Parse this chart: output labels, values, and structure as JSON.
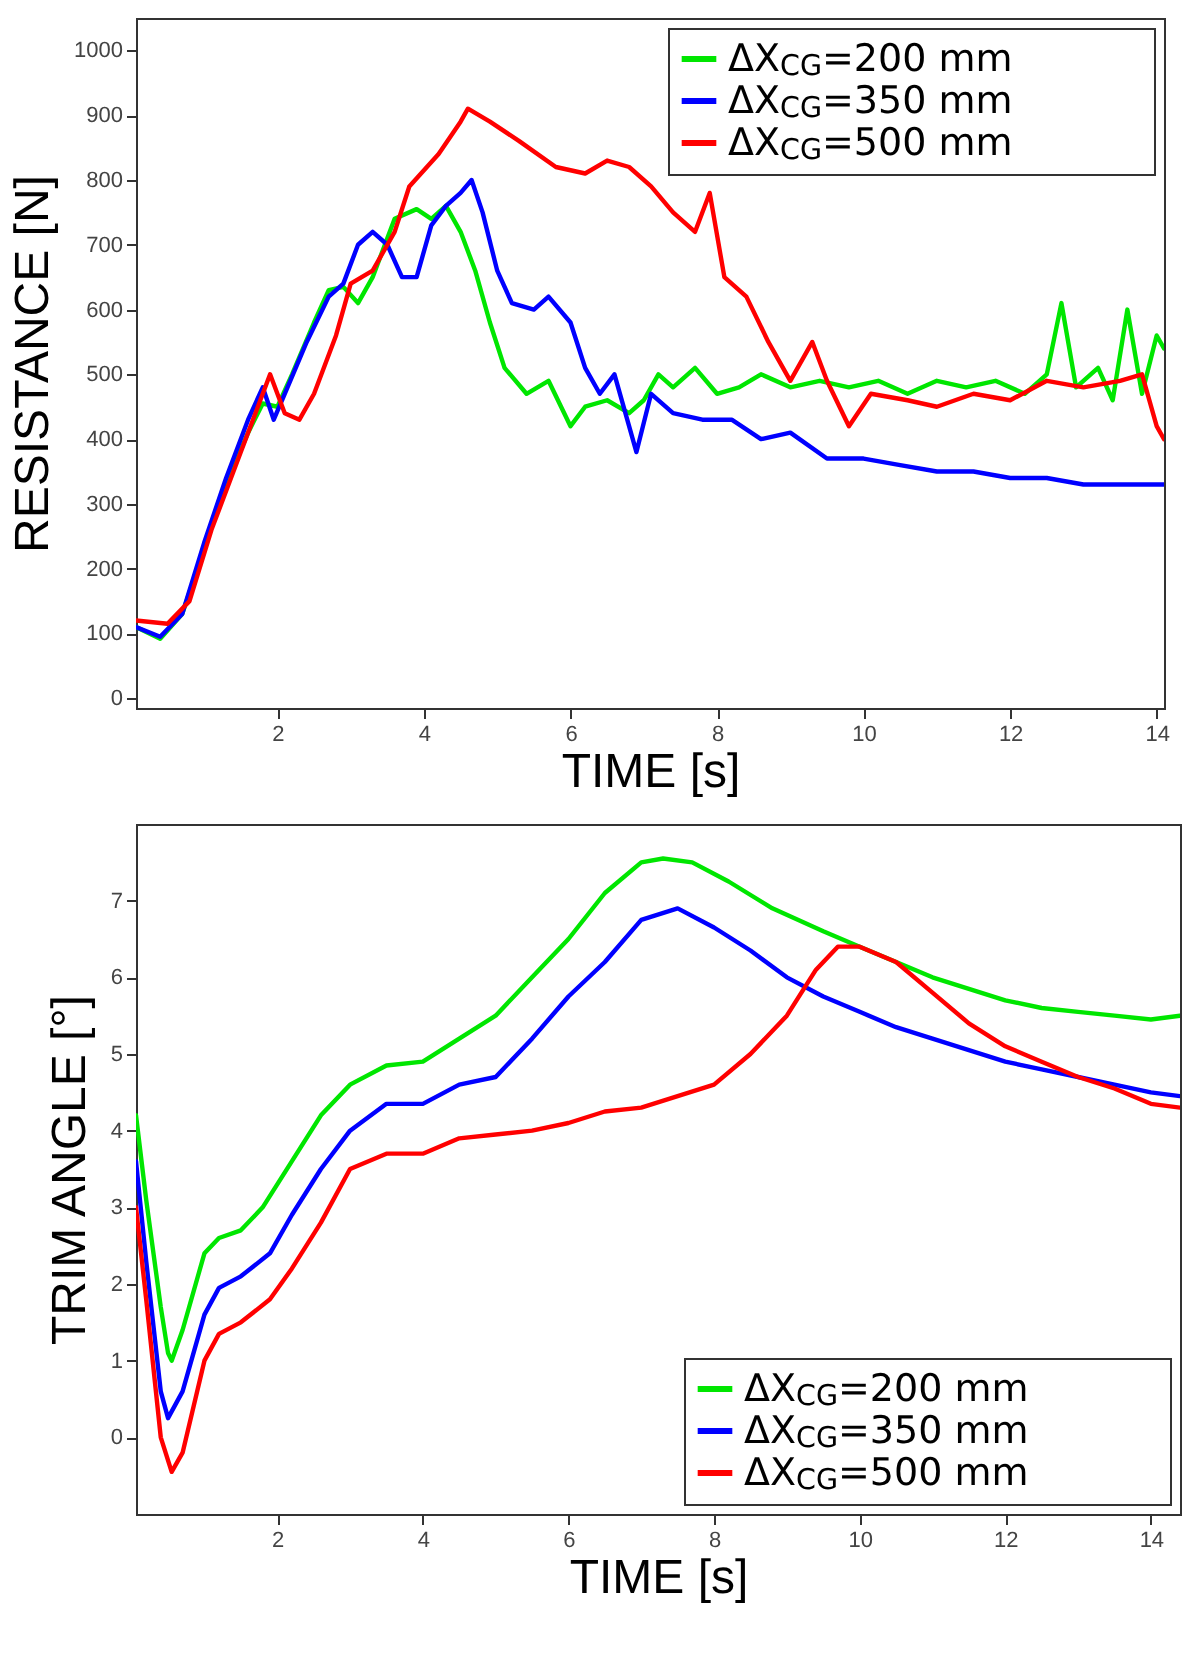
{
  "chart_data": [
    {
      "type": "line",
      "xlabel": "TIME [s]",
      "ylabel": "RESISTANCE [N]",
      "xlim": [
        0.07,
        14.1
      ],
      "ylim": [
        -15,
        1050
      ],
      "xticks": [
        2,
        4,
        6,
        8,
        10,
        12,
        14
      ],
      "yticks": [
        0,
        100,
        200,
        300,
        400,
        500,
        600,
        700,
        800,
        900,
        1000
      ],
      "grid": false,
      "legend": "top right",
      "line_style": "solid",
      "series": [
        {
          "name": "ΔX$_{CG}$=200 mm",
          "color": "#00e600",
          "x": [
            0.07,
            0.4,
            0.7,
            1.0,
            1.3,
            1.6,
            1.8,
            2.0,
            2.2,
            2.5,
            2.7,
            2.9,
            3.1,
            3.3,
            3.6,
            3.9,
            4.1,
            4.3,
            4.5,
            4.7,
            4.9,
            5.1,
            5.4,
            5.7,
            6.0,
            6.2,
            6.5,
            6.8,
            7.0,
            7.2,
            7.4,
            7.7,
            8.0,
            8.3,
            8.6,
            9.0,
            9.4,
            9.8,
            10.2,
            10.6,
            11.0,
            11.4,
            11.8,
            12.2,
            12.5,
            12.7,
            12.9,
            13.2,
            13.4,
            13.6,
            13.8,
            14.0,
            14.1
          ],
          "values": [
            110,
            92,
            130,
            230,
            330,
            410,
            455,
            450,
            500,
            580,
            630,
            635,
            610,
            650,
            740,
            755,
            740,
            760,
            720,
            660,
            580,
            510,
            470,
            490,
            420,
            450,
            460,
            440,
            460,
            500,
            480,
            510,
            470,
            480,
            500,
            480,
            490,
            480,
            490,
            470,
            490,
            480,
            490,
            470,
            500,
            610,
            480,
            510,
            460,
            600,
            470,
            560,
            540
          ]
        },
        {
          "name": "ΔX$_{CG}$=350 mm",
          "color": "#0000ff",
          "x": [
            0.07,
            0.4,
            0.7,
            1.0,
            1.3,
            1.6,
            1.8,
            1.95,
            2.1,
            2.4,
            2.7,
            2.9,
            3.1,
            3.3,
            3.5,
            3.7,
            3.9,
            4.1,
            4.3,
            4.5,
            4.65,
            4.8,
            5.0,
            5.2,
            5.5,
            5.7,
            6.0,
            6.2,
            6.4,
            6.6,
            6.9,
            7.1,
            7.4,
            7.8,
            8.2,
            8.6,
            9.0,
            9.5,
            10.0,
            10.5,
            11.0,
            11.5,
            12.0,
            12.5,
            13.0,
            13.5,
            14.1
          ],
          "values": [
            110,
            95,
            130,
            240,
            340,
            430,
            480,
            430,
            470,
            550,
            620,
            640,
            700,
            720,
            700,
            650,
            650,
            730,
            760,
            780,
            800,
            750,
            660,
            610,
            600,
            620,
            580,
            510,
            470,
            500,
            380,
            470,
            440,
            430,
            430,
            400,
            410,
            370,
            370,
            360,
            350,
            350,
            340,
            340,
            330,
            330,
            330
          ]
        },
        {
          "name": "ΔX$_{CG}$=500 mm",
          "color": "#ff0000",
          "x": [
            0.07,
            0.5,
            0.8,
            1.1,
            1.4,
            1.7,
            1.9,
            2.1,
            2.3,
            2.5,
            2.8,
            3.0,
            3.3,
            3.6,
            3.8,
            4.2,
            4.5,
            4.6,
            4.9,
            5.3,
            5.8,
            6.2,
            6.5,
            6.8,
            7.1,
            7.4,
            7.7,
            7.9,
            8.1,
            8.4,
            8.7,
            9.0,
            9.3,
            9.5,
            9.8,
            10.1,
            10.6,
            11.0,
            11.5,
            12.0,
            12.5,
            13.0,
            13.5,
            13.8,
            14.0,
            14.1
          ],
          "values": [
            120,
            115,
            150,
            260,
            350,
            440,
            500,
            440,
            430,
            470,
            560,
            640,
            660,
            720,
            790,
            840,
            890,
            910,
            890,
            860,
            820,
            810,
            830,
            820,
            790,
            750,
            720,
            780,
            650,
            620,
            550,
            490,
            550,
            490,
            420,
            470,
            460,
            450,
            470,
            460,
            490,
            480,
            490,
            500,
            420,
            400
          ]
        }
      ]
    },
    {
      "type": "line",
      "xlabel": "TIME [s]",
      "ylabel": "TRIM ANGLE [°]",
      "xlim": [
        0.06,
        14.4
      ],
      "ylim": [
        -1,
        8
      ],
      "xticks": [
        2,
        4,
        6,
        8,
        10,
        12,
        14
      ],
      "yticks": [
        0,
        1,
        2,
        3,
        4,
        5,
        6,
        7
      ],
      "grid": false,
      "legend": "bottom right",
      "line_style": "solid",
      "series": [
        {
          "name": "ΔX$_{CG}$=200 mm",
          "color": "#00e600",
          "x": [
            0.06,
            0.2,
            0.4,
            0.5,
            0.55,
            0.7,
            1.0,
            1.2,
            1.5,
            1.8,
            2.2,
            2.6,
            3.0,
            3.5,
            4.0,
            4.5,
            5.0,
            5.5,
            6.0,
            6.5,
            7.0,
            7.3,
            7.7,
            8.2,
            8.8,
            9.5,
            10.0,
            10.5,
            11.0,
            11.5,
            12.0,
            12.5,
            13.0,
            13.5,
            14.0,
            14.4
          ],
          "values": [
            4.2,
            3.1,
            1.7,
            1.1,
            1.0,
            1.4,
            2.4,
            2.6,
            2.7,
            3.0,
            3.6,
            4.2,
            4.6,
            4.85,
            4.9,
            5.2,
            5.5,
            6.0,
            6.5,
            7.1,
            7.5,
            7.55,
            7.5,
            7.25,
            6.9,
            6.6,
            6.4,
            6.2,
            6.0,
            5.85,
            5.7,
            5.6,
            5.55,
            5.5,
            5.45,
            5.5
          ]
        },
        {
          "name": "ΔX$_{CG}$=350 mm",
          "color": "#0000ff",
          "x": [
            0.06,
            0.2,
            0.4,
            0.5,
            0.7,
            1.0,
            1.2,
            1.5,
            1.9,
            2.2,
            2.6,
            3.0,
            3.5,
            4.0,
            4.5,
            5.0,
            5.5,
            6.0,
            6.5,
            7.0,
            7.5,
            8.0,
            8.5,
            9.0,
            9.5,
            10.0,
            10.5,
            11.0,
            11.5,
            12.0,
            12.5,
            13.0,
            13.5,
            14.0,
            14.4
          ],
          "values": [
            3.6,
            2.3,
            0.6,
            0.25,
            0.6,
            1.6,
            1.95,
            2.1,
            2.4,
            2.9,
            3.5,
            4.0,
            4.35,
            4.35,
            4.6,
            4.7,
            5.2,
            5.75,
            6.2,
            6.75,
            6.9,
            6.65,
            6.35,
            6.0,
            5.75,
            5.55,
            5.35,
            5.2,
            5.05,
            4.9,
            4.8,
            4.7,
            4.6,
            4.5,
            4.45
          ]
        },
        {
          "name": "ΔX$_{CG}$=500 mm",
          "color": "#ff0000",
          "x": [
            0.06,
            0.2,
            0.4,
            0.55,
            0.7,
            1.0,
            1.2,
            1.5,
            1.9,
            2.2,
            2.6,
            3.0,
            3.5,
            4.0,
            4.5,
            5.0,
            5.5,
            6.0,
            6.5,
            7.0,
            7.5,
            8.0,
            8.5,
            9.0,
            9.4,
            9.7,
            10.0,
            10.5,
            11.0,
            11.5,
            12.0,
            12.5,
            13.0,
            13.5,
            14.0,
            14.4
          ],
          "values": [
            3.0,
            1.8,
            0.0,
            -0.45,
            -0.2,
            1.0,
            1.35,
            1.5,
            1.8,
            2.2,
            2.8,
            3.5,
            3.7,
            3.7,
            3.9,
            3.95,
            4.0,
            4.1,
            4.25,
            4.3,
            4.45,
            4.6,
            5.0,
            5.5,
            6.1,
            6.4,
            6.4,
            6.2,
            5.8,
            5.4,
            5.1,
            4.9,
            4.7,
            4.55,
            4.35,
            4.3
          ]
        }
      ]
    }
  ]
}
